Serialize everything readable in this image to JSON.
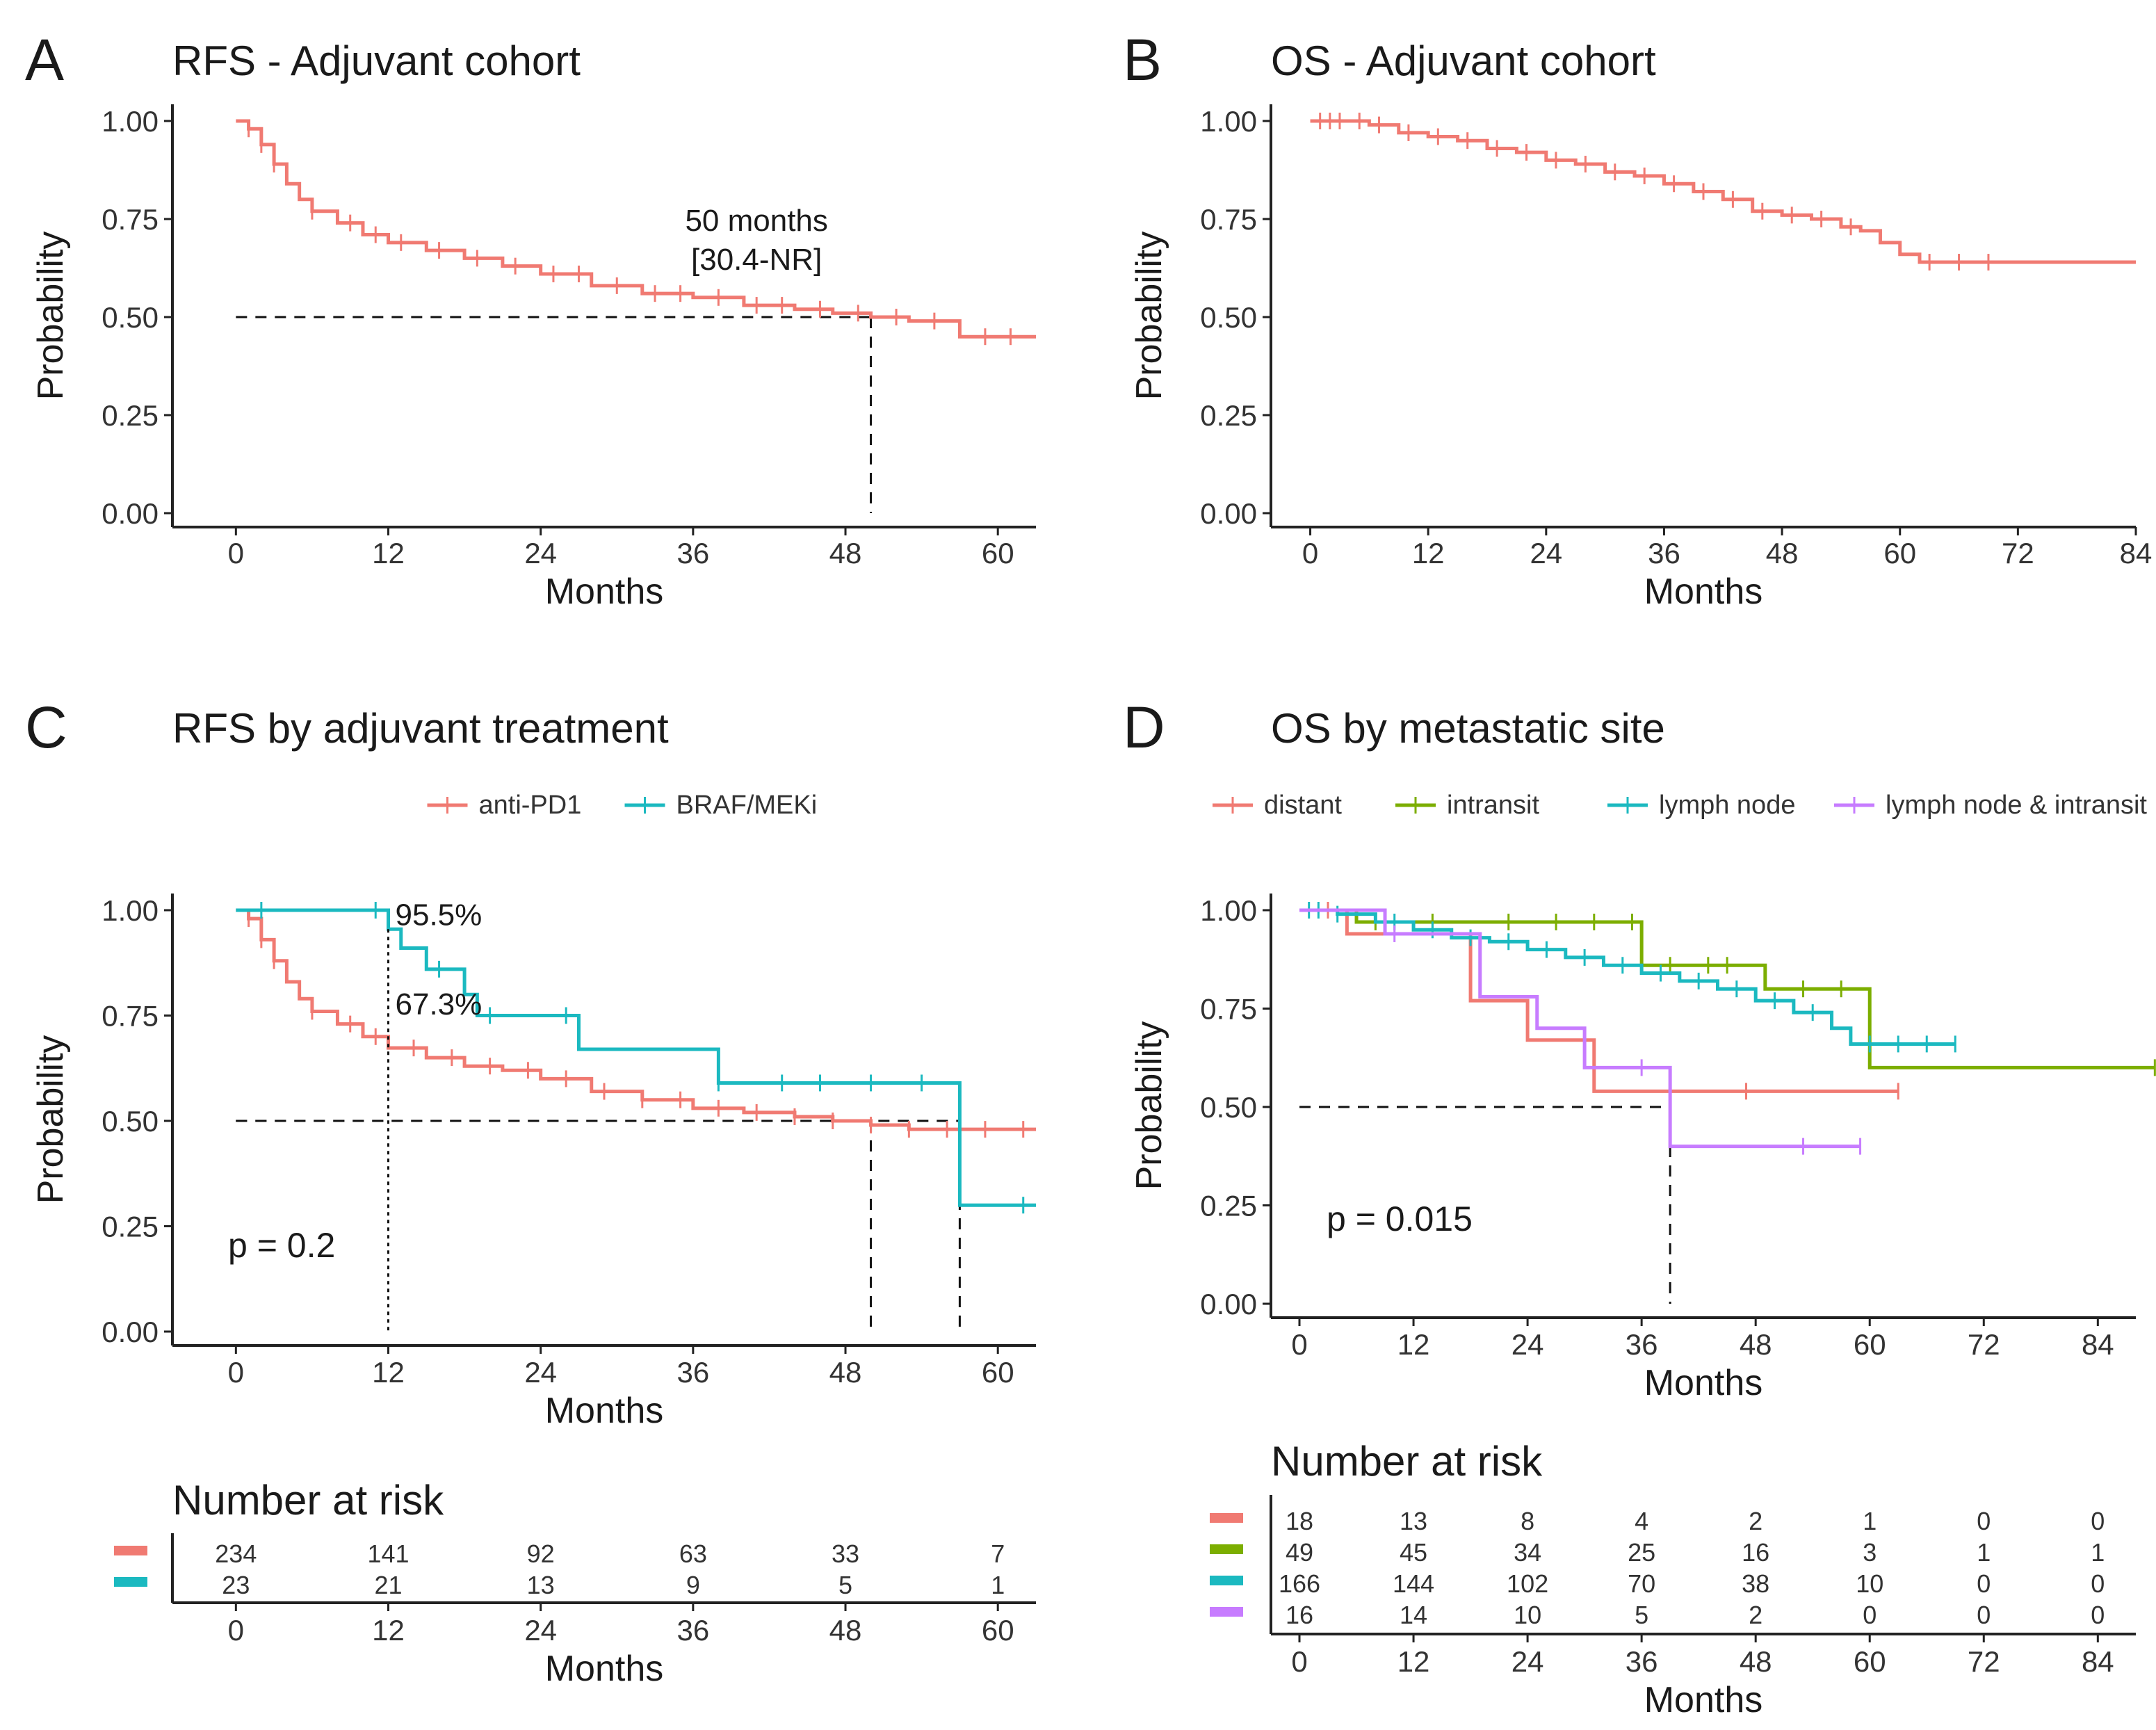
{
  "colors": {
    "salmon": "#F07A72",
    "teal": "#1BB9C0",
    "green": "#7CAE00",
    "purple": "#C77CFF",
    "axis": "#222222"
  },
  "chart_data": [
    {
      "id": "A",
      "type": "line",
      "letter": "A",
      "title": "RFS - Adjuvant cohort",
      "xlabel": "Months",
      "ylabel": "Probability",
      "xlim": [
        -5,
        63
      ],
      "ylim": [
        0,
        1.04
      ],
      "xticks": [
        "0",
        "12",
        "24",
        "36",
        "48",
        "60"
      ],
      "yticks": [
        "0.00",
        "0.25",
        "0.50",
        "0.75",
        "1.00"
      ],
      "series": [
        {
          "name": "RFS",
          "color": "#F07A72",
          "x": [
            0,
            1,
            2,
            3,
            4,
            5,
            6,
            8,
            10,
            12,
            15,
            18,
            21,
            24,
            28,
            32,
            36,
            40,
            44,
            47,
            50,
            53,
            57,
            63
          ],
          "y": [
            1.0,
            0.98,
            0.94,
            0.89,
            0.84,
            0.8,
            0.77,
            0.74,
            0.71,
            0.69,
            0.67,
            0.65,
            0.63,
            0.61,
            0.58,
            0.56,
            0.55,
            0.53,
            0.52,
            0.51,
            0.5,
            0.49,
            0.45,
            0.45
          ],
          "censor_x": [
            1,
            2,
            3,
            6,
            9,
            11,
            13,
            16,
            19,
            22,
            25,
            27,
            30,
            33,
            35,
            38,
            41,
            43,
            46,
            49,
            52,
            55,
            59,
            61
          ]
        }
      ],
      "median": {
        "x": 50,
        "y": 0.5
      },
      "annotation": [
        "50 months",
        "[30.4-NR]"
      ]
    },
    {
      "id": "B",
      "type": "line",
      "letter": "B",
      "title": "OS - Adjuvant cohort",
      "xlabel": "Months",
      "ylabel": "Probability",
      "xlim": [
        -4,
        84
      ],
      "ylim": [
        0,
        1.04
      ],
      "xticks": [
        "0",
        "12",
        "24",
        "36",
        "48",
        "60",
        "72",
        "84"
      ],
      "yticks": [
        "0.00",
        "0.25",
        "0.50",
        "0.75",
        "1.00"
      ],
      "series": [
        {
          "name": "OS",
          "color": "#F07A72",
          "x": [
            0,
            6,
            9,
            12,
            15,
            18,
            21,
            24,
            27,
            30,
            33,
            36,
            39,
            42,
            45,
            48,
            51,
            54,
            56,
            58,
            60,
            62,
            84
          ],
          "y": [
            1.0,
            0.99,
            0.97,
            0.96,
            0.95,
            0.93,
            0.92,
            0.9,
            0.89,
            0.87,
            0.86,
            0.84,
            0.82,
            0.8,
            0.77,
            0.76,
            0.75,
            0.73,
            0.72,
            0.69,
            0.66,
            0.64,
            0.64
          ],
          "censor_x": [
            1,
            2,
            3,
            5,
            7,
            10,
            13,
            16,
            19,
            22,
            25,
            28,
            31,
            34,
            37,
            40,
            43,
            46,
            49,
            52,
            55,
            63,
            66,
            69
          ]
        }
      ]
    },
    {
      "id": "C",
      "type": "line",
      "letter": "C",
      "title": "RFS by adjuvant treatment",
      "xlabel": "Months",
      "ylabel": "Probability",
      "xlim": [
        -5,
        63
      ],
      "ylim": [
        0,
        1.04
      ],
      "xticks": [
        "0",
        "12",
        "24",
        "36",
        "48",
        "60"
      ],
      "yticks": [
        "0.00",
        "0.25",
        "0.50",
        "0.75",
        "1.00"
      ],
      "legend_position": "top",
      "series": [
        {
          "name": "anti-PD1",
          "color": "#F07A72",
          "x": [
            0,
            1,
            2,
            3,
            4,
            5,
            6,
            8,
            10,
            12,
            15,
            18,
            21,
            24,
            28,
            32,
            36,
            40,
            44,
            47,
            50,
            53,
            63
          ],
          "y": [
            1.0,
            0.98,
            0.93,
            0.88,
            0.83,
            0.79,
            0.76,
            0.73,
            0.7,
            0.673,
            0.65,
            0.63,
            0.62,
            0.6,
            0.57,
            0.55,
            0.53,
            0.52,
            0.51,
            0.5,
            0.49,
            0.48,
            0.48
          ],
          "censor_x": [
            1,
            2,
            3,
            6,
            9,
            11,
            14,
            17,
            20,
            23,
            26,
            29,
            32,
            35,
            38,
            41,
            44,
            47,
            50,
            53,
            56,
            59,
            62
          ]
        },
        {
          "name": "BRAF/MEKi",
          "color": "#1BB9C0",
          "x": [
            0,
            12,
            13,
            15,
            18,
            19,
            27,
            38,
            57,
            63
          ],
          "y": [
            1.0,
            0.955,
            0.91,
            0.86,
            0.8,
            0.75,
            0.67,
            0.59,
            0.3,
            0.3
          ],
          "censor_x": [
            2,
            11,
            16,
            20,
            26,
            38,
            43,
            46,
            50,
            54,
            62
          ]
        }
      ],
      "medians": [
        {
          "x": 50,
          "y": 0.5
        },
        {
          "x": 57,
          "y": 0.5
        }
      ],
      "marker_x": 12,
      "labels": [
        "95.5%",
        "67.3%"
      ],
      "label_values": [
        0.955,
        0.673
      ],
      "pvalue": "p = 0.2",
      "risk": {
        "title": "Number at risk",
        "rows": [
          {
            "color": "#F07A72",
            "values": [
              "234",
              "141",
              "92",
              "63",
              "33",
              "7"
            ]
          },
          {
            "color": "#1BB9C0",
            "values": [
              "23",
              "21",
              "13",
              "9",
              "5",
              "1"
            ]
          }
        ],
        "xticks": [
          "0",
          "12",
          "24",
          "36",
          "48",
          "60"
        ],
        "xlabel": "Months"
      }
    },
    {
      "id": "D",
      "type": "line",
      "letter": "D",
      "title": "OS by metastatic site",
      "xlabel": "Months",
      "ylabel": "Probability",
      "xlim": [
        -3,
        88
      ],
      "ylim": [
        0,
        1.04
      ],
      "xticks": [
        "0",
        "12",
        "24",
        "36",
        "48",
        "60",
        "72",
        "84"
      ],
      "yticks": [
        "0.00",
        "0.25",
        "0.50",
        "0.75",
        "1.00"
      ],
      "legend_position": "top",
      "series": [
        {
          "name": "distant",
          "color": "#F07A72",
          "x": [
            0,
            5,
            18,
            24,
            31,
            63
          ],
          "y": [
            1.0,
            0.94,
            0.77,
            0.67,
            0.54,
            0.54
          ],
          "censor_x": [
            3,
            47,
            63
          ]
        },
        {
          "name": "intransit",
          "color": "#7CAE00",
          "x": [
            0,
            6,
            36,
            49,
            60,
            90
          ],
          "y": [
            1.0,
            0.97,
            0.86,
            0.8,
            0.6,
            0.6
          ],
          "censor_x": [
            8,
            14,
            22,
            27,
            31,
            35,
            39,
            43,
            45,
            53,
            57,
            90
          ]
        },
        {
          "name": "lymph node",
          "color": "#1BB9C0",
          "x": [
            0,
            4,
            8,
            12,
            16,
            20,
            24,
            28,
            32,
            36,
            40,
            44,
            48,
            52,
            56,
            58,
            69
          ],
          "y": [
            1.0,
            0.99,
            0.97,
            0.95,
            0.93,
            0.92,
            0.9,
            0.88,
            0.86,
            0.84,
            0.82,
            0.8,
            0.77,
            0.74,
            0.7,
            0.66,
            0.66
          ],
          "censor_x": [
            1,
            2,
            4,
            10,
            14,
            18,
            22,
            26,
            30,
            34,
            38,
            42,
            46,
            50,
            54,
            60,
            63,
            66,
            69
          ]
        },
        {
          "name": "lymph node & intransit",
          "color": "#C77CFF",
          "x": [
            0,
            9,
            19,
            25,
            30,
            39,
            59
          ],
          "y": [
            1.0,
            0.94,
            0.78,
            0.7,
            0.6,
            0.4,
            0.4
          ],
          "censor_x": [
            10,
            36,
            53,
            59
          ]
        }
      ],
      "median": {
        "x": 39,
        "y": 0.5
      },
      "pvalue": "p = 0.015",
      "risk": {
        "title": "Number at risk",
        "rows": [
          {
            "color": "#F07A72",
            "values": [
              "18",
              "13",
              "8",
              "4",
              "2",
              "1",
              "0",
              "0"
            ]
          },
          {
            "color": "#7CAE00",
            "values": [
              "49",
              "45",
              "34",
              "25",
              "16",
              "3",
              "1",
              "1"
            ]
          },
          {
            "color": "#1BB9C0",
            "values": [
              "166",
              "144",
              "102",
              "70",
              "38",
              "10",
              "0",
              "0"
            ]
          },
          {
            "color": "#C77CFF",
            "values": [
              "16",
              "14",
              "10",
              "5",
              "2",
              "0",
              "0",
              "0"
            ]
          }
        ],
        "xticks": [
          "0",
          "12",
          "24",
          "36",
          "48",
          "60",
          "72",
          "84"
        ],
        "xlabel": "Months"
      }
    }
  ]
}
